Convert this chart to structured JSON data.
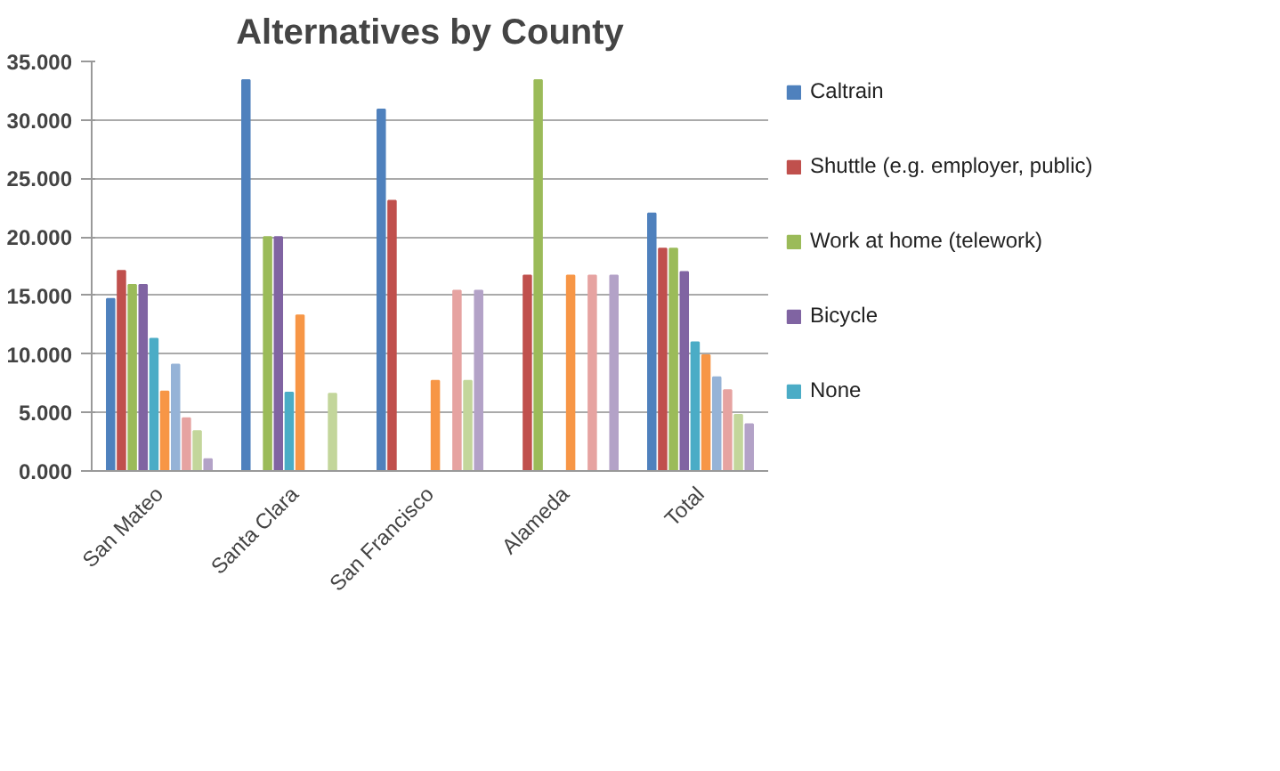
{
  "chart_data": {
    "type": "bar",
    "title": "Alternatives by County",
    "categories": [
      "San Mateo",
      "Santa Clara",
      "San Francisco",
      "Alameda",
      "Total"
    ],
    "series": [
      {
        "name": "Caltrain",
        "color": "#4f81bd",
        "values": [
          14.7,
          33.4,
          30.9,
          0,
          22.0
        ]
      },
      {
        "name": "Shuttle (e.g. employer, public)",
        "color": "#c0504d",
        "values": [
          17.1,
          0,
          23.1,
          16.7,
          19.0
        ]
      },
      {
        "name": "Work at home (telework)",
        "color": "#9bbb59",
        "values": [
          15.9,
          20.0,
          0,
          33.4,
          19.0
        ]
      },
      {
        "name": "Bicycle",
        "color": "#8064a2",
        "values": [
          15.9,
          20.0,
          0,
          0,
          17.0
        ]
      },
      {
        "name": "None",
        "color": "#4bacc6",
        "values": [
          11.3,
          6.7,
          0,
          0,
          11.0
        ]
      },
      {
        "color": "#f79646",
        "values": [
          6.8,
          13.3,
          7.7,
          16.7,
          9.9
        ]
      },
      {
        "color": "#95b3d7",
        "values": [
          9.1,
          0,
          0,
          0,
          8.0
        ]
      },
      {
        "color": "#e6a3a1",
        "values": [
          4.5,
          0,
          15.4,
          16.7,
          6.9
        ]
      },
      {
        "color": "#c3d69b",
        "values": [
          3.4,
          6.6,
          7.7,
          0,
          4.8
        ]
      },
      {
        "color": "#b3a2c7",
        "values": [
          1.0,
          0,
          15.4,
          16.7,
          4.0
        ]
      }
    ],
    "ylim": [
      0,
      35
    ],
    "yticks": [
      {
        "value": 0,
        "label": "0.000"
      },
      {
        "value": 5,
        "label": "5.000"
      },
      {
        "value": 10,
        "label": "10.000"
      },
      {
        "value": 15,
        "label": "15.000"
      },
      {
        "value": 20,
        "label": "20.000"
      },
      {
        "value": 25,
        "label": "25.000"
      },
      {
        "value": 30,
        "label": "30.000"
      },
      {
        "value": 35,
        "label": "35.000"
      }
    ],
    "grid": "y",
    "legend": "right"
  }
}
